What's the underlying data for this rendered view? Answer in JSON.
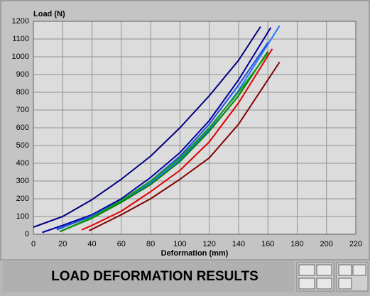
{
  "chart_data": {
    "type": "line",
    "title": "LOAD DEFORMATION RESULTS",
    "y_label": "Load (N)",
    "x_label": "Deformation (mm)",
    "xlim": [
      0,
      220
    ],
    "xticks": [
      0,
      20,
      40,
      60,
      80,
      100,
      120,
      140,
      160,
      180,
      200,
      220
    ],
    "ylim": [
      0,
      1200
    ],
    "yticks": [
      0,
      100,
      200,
      300,
      400,
      500,
      600,
      700,
      800,
      900,
      1000,
      1100,
      1200
    ],
    "grid": true,
    "series": [
      {
        "color": "#000080",
        "x": [
          0,
          20,
          40,
          60,
          80,
          100,
          120,
          140,
          155
        ],
        "values": [
          40,
          100,
          195,
          310,
          440,
          600,
          780,
          980,
          1170
        ]
      },
      {
        "color": "#0000a0",
        "x": [
          6,
          20,
          40,
          60,
          80,
          100,
          120,
          140,
          162
        ],
        "values": [
          10,
          50,
          110,
          200,
          320,
          460,
          640,
          870,
          1165
        ]
      },
      {
        "color": "#1e78ff",
        "x": [
          16,
          40,
          60,
          80,
          100,
          120,
          140,
          168
        ],
        "values": [
          30,
          100,
          180,
          290,
          420,
          590,
          810,
          1175
        ]
      },
      {
        "color": "#2850e0",
        "x": [
          16,
          40,
          60,
          80,
          100,
          120,
          140,
          160
        ],
        "values": [
          25,
          105,
          190,
          300,
          440,
          620,
          840,
          1080
        ]
      },
      {
        "color": "#008000",
        "x": [
          18,
          40,
          60,
          80,
          100,
          120,
          140,
          160
        ],
        "values": [
          15,
          90,
          180,
          280,
          410,
          580,
          780,
          1030
        ]
      },
      {
        "color": "#10a010",
        "x": [
          22,
          40,
          60,
          80,
          100,
          120,
          140,
          160
        ],
        "values": [
          30,
          95,
          190,
          300,
          430,
          600,
          800,
          1020
        ]
      },
      {
        "color": "#e00000",
        "x": [
          33,
          40,
          60,
          80,
          100,
          120,
          140,
          163
        ],
        "values": [
          25,
          50,
          130,
          240,
          360,
          520,
          740,
          1045
        ]
      },
      {
        "color": "#800000",
        "x": [
          38,
          60,
          80,
          100,
          120,
          140,
          168
        ],
        "values": [
          20,
          110,
          200,
          310,
          430,
          620,
          970
        ]
      }
    ]
  }
}
